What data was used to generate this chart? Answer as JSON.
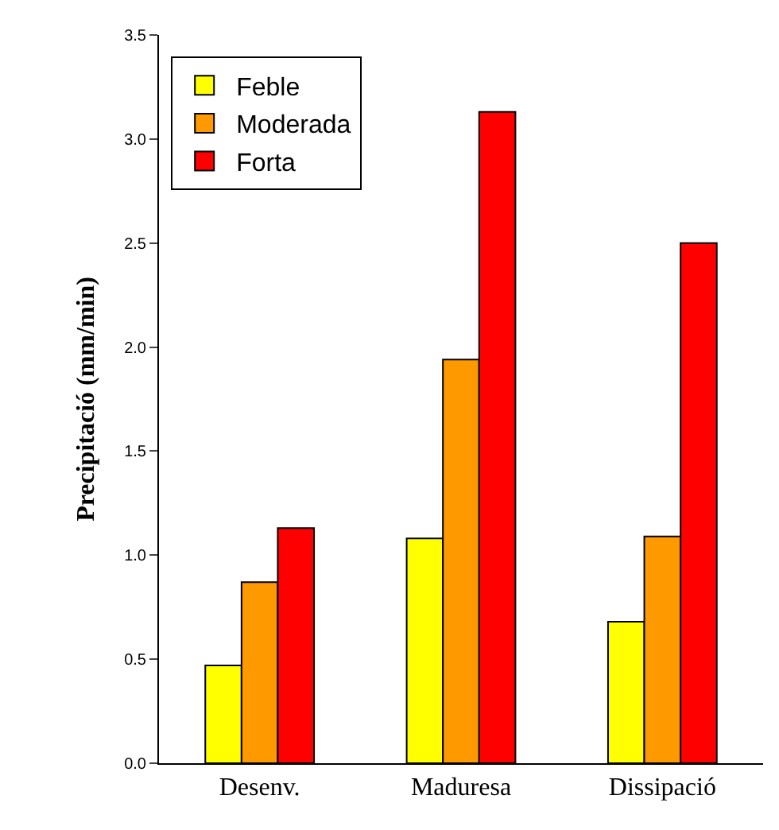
{
  "chart_data": {
    "type": "bar",
    "ylabel": "Precipitació (mm/min)",
    "categories": [
      "Desenv.",
      "Maduresa",
      "Dissipació"
    ],
    "series": [
      {
        "name": "Feble",
        "color": "#ffff00",
        "values": [
          0.47,
          1.08,
          0.68
        ]
      },
      {
        "name": "Moderada",
        "color": "#ff9900",
        "values": [
          0.87,
          1.94,
          1.09
        ]
      },
      {
        "name": "Forta",
        "color": "#ff0000",
        "values": [
          1.13,
          3.13,
          2.5
        ]
      }
    ],
    "ylim": [
      0,
      3.5
    ],
    "yticks": [
      {
        "value": 0,
        "label": "0.0"
      },
      0.5,
      {
        "value": 1,
        "label": "1.0"
      },
      1.5,
      {
        "value": 2,
        "label": "2.0"
      },
      2.5,
      {
        "value": 3,
        "label": "3.0"
      },
      3.5
    ],
    "grid": false,
    "legend": "top left"
  }
}
